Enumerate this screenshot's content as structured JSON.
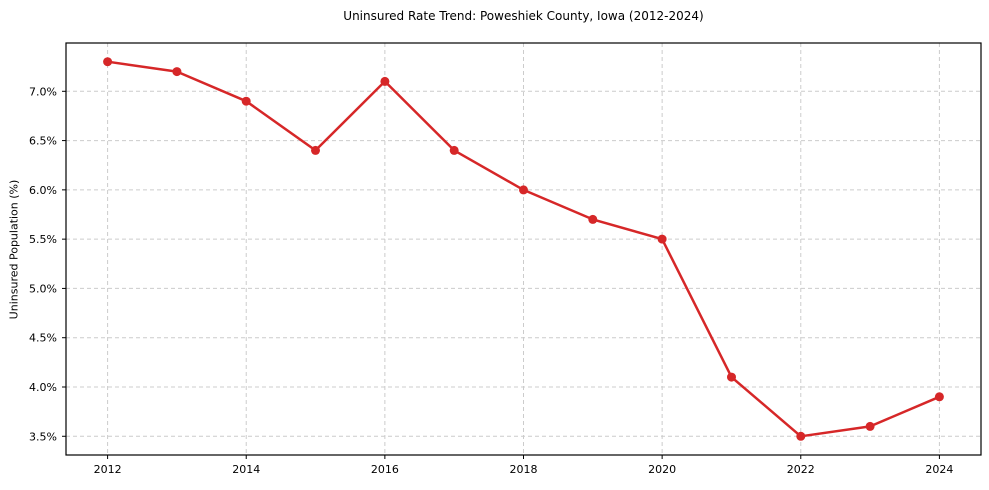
{
  "chart_data": {
    "type": "line",
    "title": "Uninsured Rate Trend: Poweshiek County, Iowa (2012-2024)",
    "xlabel": "",
    "ylabel": "Uninsured Population (%)",
    "x": [
      2012,
      2013,
      2014,
      2015,
      2016,
      2017,
      2018,
      2019,
      2020,
      2021,
      2022,
      2023,
      2024
    ],
    "values": [
      7.3,
      7.2,
      6.9,
      6.4,
      7.1,
      6.4,
      6.0,
      5.7,
      5.5,
      4.1,
      3.5,
      3.6,
      3.9
    ],
    "series_name": "Uninsured rate",
    "xlim": [
      2011.4,
      2024.6
    ],
    "ylim": [
      3.31,
      7.49
    ],
    "x_ticks": [
      2012,
      2014,
      2016,
      2018,
      2020,
      2022,
      2024
    ],
    "x_tick_labels": [
      "2012",
      "2014",
      "2016",
      "2018",
      "2020",
      "2022",
      "2024"
    ],
    "y_ticks": [
      3.5,
      4.0,
      4.5,
      5.0,
      5.5,
      6.0,
      6.5,
      7.0
    ],
    "y_tick_labels": [
      "3.5%",
      "4.0%",
      "4.5%",
      "5.0%",
      "5.5%",
      "6.0%",
      "6.5%",
      "7.0%"
    ],
    "grid": true,
    "legend": false,
    "line_color": "#d62728",
    "grid_color": "#cccccc",
    "axis_color": "#000000",
    "background_color": "#ffffff"
  }
}
